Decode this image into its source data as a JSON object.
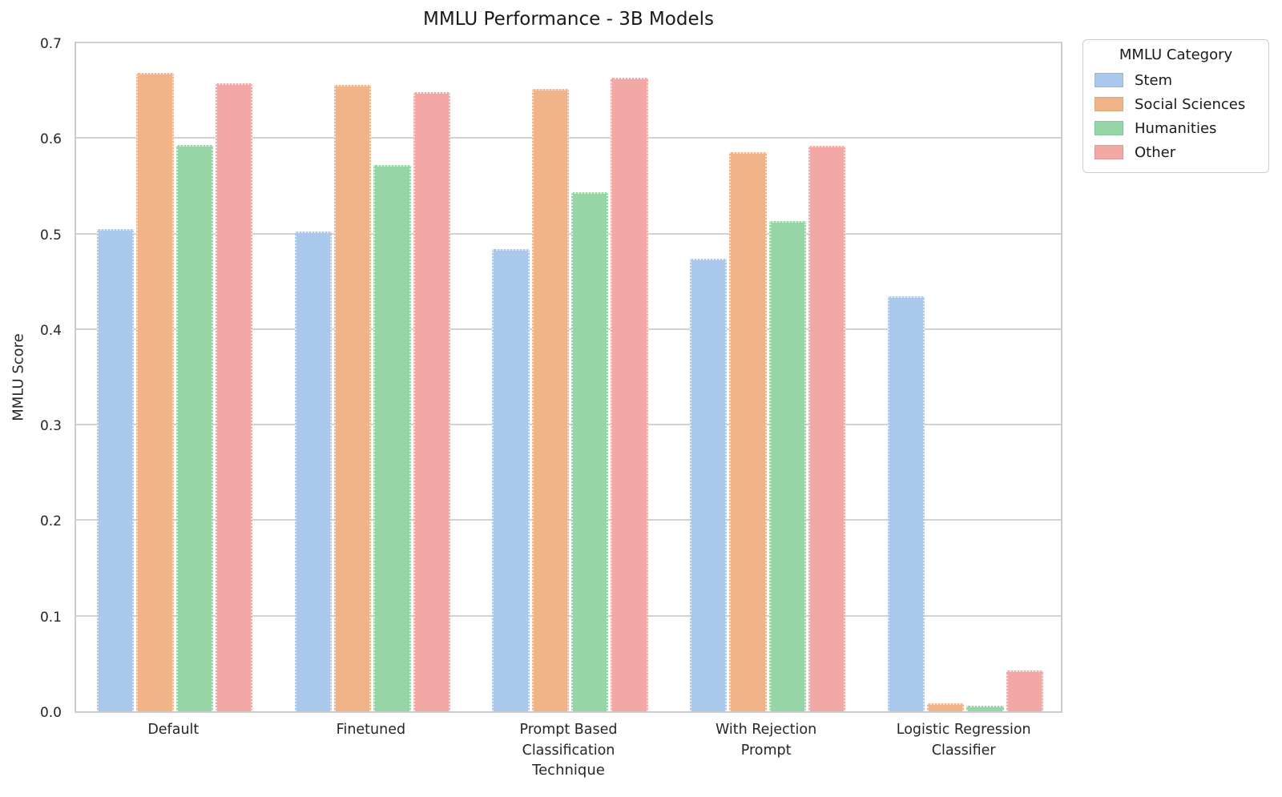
{
  "chart_data": {
    "type": "bar",
    "title": "MMLU Performance - 3B Models",
    "xlabel": "Technique",
    "ylabel": "MMLU Score",
    "ylim": [
      0.0,
      0.7
    ],
    "yticks": [
      "0.0",
      "0.1",
      "0.2",
      "0.3",
      "0.4",
      "0.5",
      "0.6",
      "0.7"
    ],
    "grid": true,
    "legend_title": "MMLU Category",
    "legend_position": "upper right outside axes",
    "categories": [
      "Default",
      "Finetuned",
      "Prompt Based\nClassification",
      "With Rejection\nPrompt",
      "Logistic Regression\nClassifier"
    ],
    "series": [
      {
        "name": "Stem",
        "color": "#aac8ec",
        "values": [
          0.505,
          0.502,
          0.484,
          0.474,
          0.434
        ]
      },
      {
        "name": "Social Sciences",
        "color": "#f0b488",
        "values": [
          0.668,
          0.656,
          0.651,
          0.585,
          0.008
        ]
      },
      {
        "name": "Humanities",
        "color": "#96d5a6",
        "values": [
          0.593,
          0.572,
          0.543,
          0.513,
          0.006
        ]
      },
      {
        "name": "Other",
        "color": "#f2a8a5",
        "values": [
          0.657,
          0.648,
          0.663,
          0.592,
          0.043
        ]
      }
    ],
    "colors": {
      "grid": "#d2d2d2",
      "axis_edge": "#cccccc",
      "text": "#262626"
    }
  }
}
